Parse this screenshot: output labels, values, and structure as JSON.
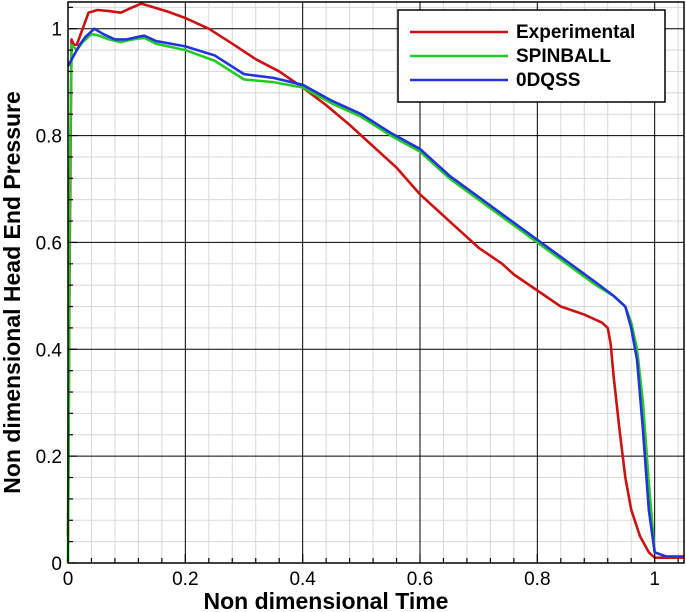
{
  "chart_data": {
    "type": "line",
    "xlabel": "Non dimensional Time",
    "ylabel": "Non dimensional Head End Pressure",
    "xlim": [
      0,
      1.05
    ],
    "ylim": [
      0,
      1.05
    ],
    "xticks": [
      0,
      0.2,
      0.4,
      0.6,
      0.8,
      1
    ],
    "xtick_labels": [
      "0",
      "0.2",
      "0.4",
      "0.6",
      "0.8",
      "1"
    ],
    "yticks": [
      0,
      0.2,
      0.4,
      0.6,
      0.8,
      1
    ],
    "ytick_labels": [
      "0",
      "0.2",
      "0.4",
      "0.6",
      "0.8",
      "1"
    ],
    "grid": true,
    "legend_position": "top-right",
    "series": [
      {
        "name": "Experimental",
        "color": "#cc1111",
        "points": [
          [
            0,
            0.05
          ],
          [
            0.003,
            0.6
          ],
          [
            0.006,
            0.98
          ],
          [
            0.01,
            0.97
          ],
          [
            0.015,
            0.97
          ],
          [
            0.025,
            1.0
          ],
          [
            0.035,
            1.03
          ],
          [
            0.05,
            1.035
          ],
          [
            0.07,
            1.033
          ],
          [
            0.09,
            1.03
          ],
          [
            0.11,
            1.04
          ],
          [
            0.125,
            1.047
          ],
          [
            0.14,
            1.042
          ],
          [
            0.17,
            1.032
          ],
          [
            0.2,
            1.02
          ],
          [
            0.24,
            1.0
          ],
          [
            0.28,
            0.972
          ],
          [
            0.32,
            0.943
          ],
          [
            0.36,
            0.92
          ],
          [
            0.4,
            0.89
          ],
          [
            0.44,
            0.857
          ],
          [
            0.48,
            0.82
          ],
          [
            0.52,
            0.78
          ],
          [
            0.56,
            0.74
          ],
          [
            0.6,
            0.69
          ],
          [
            0.63,
            0.66
          ],
          [
            0.66,
            0.63
          ],
          [
            0.7,
            0.59
          ],
          [
            0.74,
            0.56
          ],
          [
            0.76,
            0.54
          ],
          [
            0.8,
            0.51
          ],
          [
            0.84,
            0.48
          ],
          [
            0.88,
            0.465
          ],
          [
            0.91,
            0.45
          ],
          [
            0.92,
            0.44
          ],
          [
            0.925,
            0.41
          ],
          [
            0.93,
            0.35
          ],
          [
            0.94,
            0.25
          ],
          [
            0.95,
            0.16
          ],
          [
            0.96,
            0.1
          ],
          [
            0.975,
            0.05
          ],
          [
            0.99,
            0.02
          ],
          [
            1.0,
            0.01
          ],
          [
            1.05,
            0.01
          ]
        ]
      },
      {
        "name": "SPINBALL",
        "color": "#22cc22",
        "points": [
          [
            0,
            0.0
          ],
          [
            0.003,
            0.7
          ],
          [
            0.006,
            0.97
          ],
          [
            0.015,
            0.96
          ],
          [
            0.025,
            0.975
          ],
          [
            0.04,
            0.99
          ],
          [
            0.05,
            0.988
          ],
          [
            0.07,
            0.98
          ],
          [
            0.09,
            0.975
          ],
          [
            0.11,
            0.98
          ],
          [
            0.13,
            0.983
          ],
          [
            0.15,
            0.972
          ],
          [
            0.2,
            0.96
          ],
          [
            0.25,
            0.94
          ],
          [
            0.3,
            0.905
          ],
          [
            0.35,
            0.9
          ],
          [
            0.4,
            0.89
          ],
          [
            0.45,
            0.86
          ],
          [
            0.5,
            0.835
          ],
          [
            0.55,
            0.8
          ],
          [
            0.6,
            0.77
          ],
          [
            0.65,
            0.72
          ],
          [
            0.7,
            0.68
          ],
          [
            0.75,
            0.64
          ],
          [
            0.8,
            0.6
          ],
          [
            0.85,
            0.56
          ],
          [
            0.9,
            0.52
          ],
          [
            0.93,
            0.5
          ],
          [
            0.95,
            0.48
          ],
          [
            0.96,
            0.45
          ],
          [
            0.97,
            0.4
          ],
          [
            0.98,
            0.3
          ],
          [
            0.99,
            0.15
          ],
          [
            1.0,
            0.02
          ],
          [
            1.02,
            0.012
          ],
          [
            1.05,
            0.012
          ]
        ]
      },
      {
        "name": "0DQSS",
        "color": "#2233dd",
        "points": [
          [
            0,
            0.93
          ],
          [
            0.01,
            0.95
          ],
          [
            0.02,
            0.97
          ],
          [
            0.03,
            0.985
          ],
          [
            0.045,
            1.0
          ],
          [
            0.06,
            0.99
          ],
          [
            0.08,
            0.98
          ],
          [
            0.1,
            0.98
          ],
          [
            0.12,
            0.985
          ],
          [
            0.13,
            0.987
          ],
          [
            0.15,
            0.977
          ],
          [
            0.2,
            0.967
          ],
          [
            0.25,
            0.95
          ],
          [
            0.3,
            0.915
          ],
          [
            0.35,
            0.908
          ],
          [
            0.4,
            0.895
          ],
          [
            0.45,
            0.865
          ],
          [
            0.5,
            0.84
          ],
          [
            0.55,
            0.805
          ],
          [
            0.6,
            0.775
          ],
          [
            0.65,
            0.725
          ],
          [
            0.7,
            0.685
          ],
          [
            0.75,
            0.645
          ],
          [
            0.8,
            0.605
          ],
          [
            0.85,
            0.565
          ],
          [
            0.9,
            0.525
          ],
          [
            0.93,
            0.5
          ],
          [
            0.95,
            0.48
          ],
          [
            0.96,
            0.44
          ],
          [
            0.97,
            0.38
          ],
          [
            0.98,
            0.25
          ],
          [
            0.99,
            0.1
          ],
          [
            1.0,
            0.02
          ],
          [
            1.02,
            0.012
          ],
          [
            1.05,
            0.012
          ]
        ]
      }
    ]
  }
}
